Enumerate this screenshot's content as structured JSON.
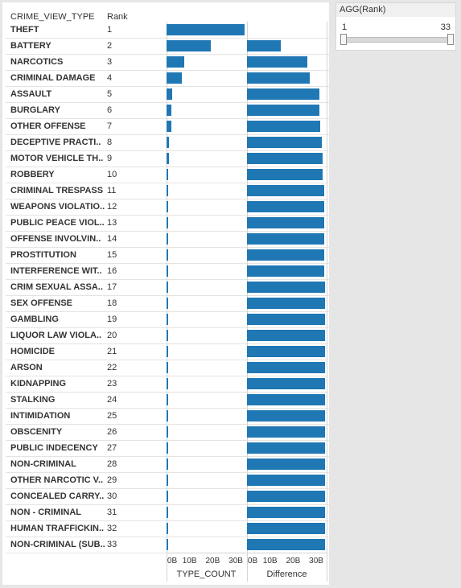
{
  "table": {
    "name_header": "CRIME_VIEW_TYPE",
    "rank_header": "Rank"
  },
  "filter": {
    "title": "AGG(Rank)",
    "min_value": 1,
    "max_value": 33,
    "min_label": "1",
    "max_label": "33"
  },
  "colors": {
    "bar": "#1f77b4"
  },
  "chart_data": {
    "type": "bar",
    "orientation": "horizontal",
    "categories": [
      "THEFT",
      "BATTERY",
      "NARCOTICS",
      "CRIMINAL DAMAGE",
      "ASSAULT",
      "BURGLARY",
      "OTHER OFFENSE",
      "DECEPTIVE PRACTI..",
      "MOTOR VEHICLE TH..",
      "ROBBERY",
      "CRIMINAL TRESPASS",
      "WEAPONS VIOLATIO..",
      "PUBLIC PEACE VIOL..",
      "OFFENSE INVOLVIN..",
      "PROSTITUTION",
      "INTERFERENCE WIT..",
      "CRIM SEXUAL ASSA..",
      "SEX OFFENSE",
      "GAMBLING",
      "LIQUOR LAW VIOLA..",
      "HOMICIDE",
      "ARSON",
      "KIDNAPPING",
      "STALKING",
      "INTIMIDATION",
      "OBSCENITY",
      "PUBLIC INDECENCY",
      "NON-CRIMINAL",
      "OTHER NARCOTIC V..",
      "CONCEALED CARRY..",
      "NON - CRIMINAL",
      "HUMAN TRAFFICKIN..",
      "NON-CRIMINAL (SUB.."
    ],
    "ranks": [
      "1",
      "2",
      "3",
      "4",
      "5",
      "6",
      "7",
      "8",
      "9",
      "10",
      "11",
      "12",
      "13",
      "14",
      "15",
      "16",
      "17",
      "18",
      "19",
      "20",
      "21",
      "22",
      "23",
      "24",
      "25",
      "26",
      "27",
      "28",
      "29",
      "30",
      "31",
      "32",
      "33"
    ],
    "series": [
      {
        "name": "TYPE_COUNT",
        "values": [
          33.7,
          19.0,
          7.6,
          6.5,
          2.3,
          2.2,
          2.0,
          1.2,
          1.1,
          0.8,
          0.25,
          0.2,
          0.15,
          0.12,
          0.1,
          0.08,
          0.07,
          0.06,
          0.05,
          0.04,
          0.03,
          0.03,
          0.02,
          0.02,
          0.02,
          0.01,
          0.01,
          0.01,
          0.01,
          0.01,
          0.005,
          0.005,
          0.005
        ]
      },
      {
        "name": "Difference",
        "values": [
          null,
          14.7,
          26.1,
          27.2,
          31.4,
          31.5,
          31.7,
          32.5,
          32.6,
          32.9,
          33.45,
          33.5,
          33.55,
          33.58,
          33.6,
          33.62,
          33.63,
          33.64,
          33.65,
          33.66,
          33.67,
          33.67,
          33.68,
          33.68,
          33.68,
          33.69,
          33.69,
          33.69,
          33.69,
          33.69,
          33.695,
          33.695,
          33.695
        ]
      }
    ],
    "axis_ticks": [
      "0B",
      "10B",
      "20B",
      "30B"
    ],
    "tick_values": [
      0,
      10,
      20,
      30
    ],
    "xlim": [
      0,
      34.5
    ],
    "axis_titles": [
      "TYPE_COUNT",
      "Difference"
    ],
    "grid": false
  }
}
